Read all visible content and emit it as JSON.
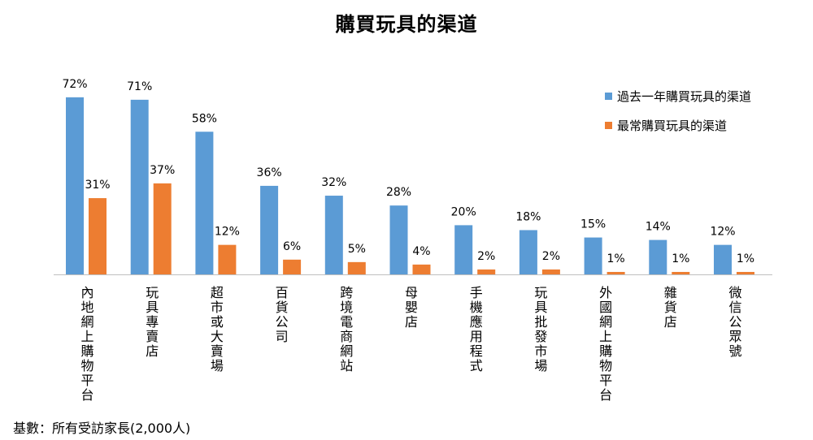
{
  "chart_data": {
    "type": "bar",
    "title": "購買玩具的渠道",
    "categories": [
      "內地網上購物平台",
      "玩具專賣店",
      "超市或大賣場",
      "百貨公司",
      "跨境電商網站",
      "母嬰店",
      "手機應用程式",
      "玩具批發市場",
      "外國網上購物平台",
      "雜貨店",
      "微信公眾號"
    ],
    "series": [
      {
        "name": "過去一年購買玩具的渠道",
        "color": "#5b9bd5",
        "values": [
          72,
          71,
          58,
          36,
          32,
          28,
          20,
          18,
          15,
          14,
          12
        ]
      },
      {
        "name": "最常購買玩具的渠道",
        "color": "#ed7d31",
        "values": [
          31,
          37,
          12,
          6,
          5,
          4,
          2,
          2,
          1,
          1,
          1
        ]
      }
    ],
    "value_suffix": "%",
    "ylim": [
      0,
      80
    ],
    "xlabel": "",
    "ylabel": "",
    "grid": false,
    "legend_position": "top-right"
  },
  "footnote": "基數：所有受訪家長(2,000人)"
}
